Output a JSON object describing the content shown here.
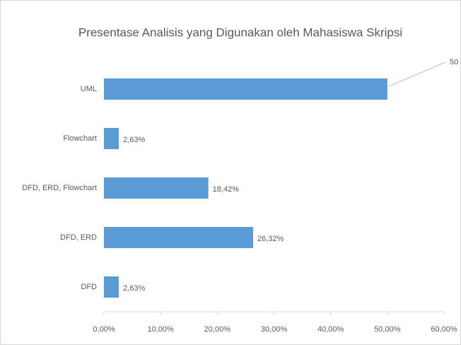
{
  "chart_data": {
    "type": "bar",
    "orientation": "horizontal",
    "title": "Presentase Analisis yang Digunakan oleh  Mahasiswa Skripsi",
    "categories": [
      "UML",
      "Flowchart",
      "DFD, ERD, Flowchart",
      "DFD, ERD",
      "DFD"
    ],
    "values": [
      50,
      2.63,
      18.42,
      26.32,
      2.63
    ],
    "value_labels": [
      "50",
      "2,63%",
      "18,42%",
      "26,32%",
      "2,63%"
    ],
    "color": "#5b9bd5",
    "xlim": [
      0,
      60
    ],
    "xticks": [
      {
        "value": 0,
        "label": "0,00%"
      },
      {
        "value": 10,
        "label": "10,00%"
      },
      {
        "value": 20,
        "label": "20,00%"
      },
      {
        "value": 30,
        "label": "30,00%"
      },
      {
        "value": 40,
        "label": "40,00%"
      },
      {
        "value": 50,
        "label": "50,00%"
      },
      {
        "value": 60,
        "label": "60,00%"
      }
    ],
    "grid": false
  }
}
